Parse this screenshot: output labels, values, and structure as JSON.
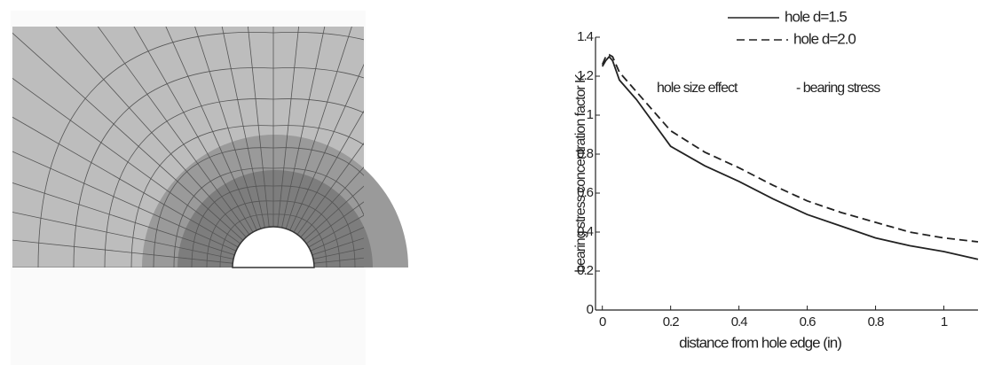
{
  "chart_data": {
    "type": "line",
    "annotations": [
      "hole size effect",
      "- bearing stress"
    ],
    "x_label": "distance from hole edge (in)",
    "y_label": "bearing stress concentration factor K",
    "x": [
      0,
      0.01,
      0.02,
      0.03,
      0.05,
      0.1,
      0.2,
      0.3,
      0.4,
      0.5,
      0.6,
      0.7,
      0.8,
      0.9,
      1.0,
      1.1
    ],
    "series": [
      {
        "name": "hole d=1.5",
        "color": "#222222",
        "dash": false,
        "values": [
          1.25,
          1.28,
          1.3,
          1.28,
          1.18,
          1.08,
          0.84,
          0.74,
          0.66,
          0.57,
          0.49,
          0.43,
          0.37,
          0.33,
          0.3,
          0.26
        ]
      },
      {
        "name": "hole d=2.0",
        "color": "#222222",
        "dash": true,
        "values": [
          1.26,
          1.3,
          1.31,
          1.3,
          1.22,
          1.12,
          0.92,
          0.81,
          0.73,
          0.64,
          0.56,
          0.5,
          0.45,
          0.4,
          0.37,
          0.35
        ]
      }
    ],
    "xlim": [
      -0.02,
      1.1
    ],
    "ylim": [
      0,
      1.4
    ],
    "xticks": [
      0,
      0.2,
      0.4,
      0.6,
      0.8,
      1
    ],
    "yticks": [
      0,
      0.2,
      0.4,
      0.6,
      0.8,
      1,
      1.2,
      1.4
    ]
  }
}
